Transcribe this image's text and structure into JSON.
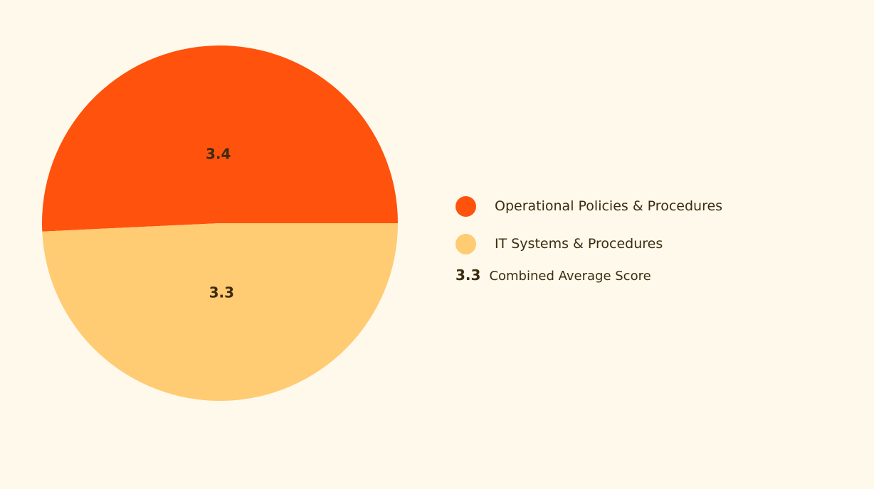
{
  "chart_data": {
    "type": "pie",
    "title": "",
    "slices": [
      {
        "label": "Operational Policies & Procedures",
        "value": 3.4,
        "color": "#ff520d"
      },
      {
        "label": "IT Systems & Procedures",
        "value": 3.3,
        "color": "#ffcb73"
      }
    ],
    "data_labels": [
      "3.4",
      "3.3"
    ],
    "legend_position": "right",
    "combined": {
      "value": "3.3",
      "label": "Combined Average Score"
    }
  }
}
